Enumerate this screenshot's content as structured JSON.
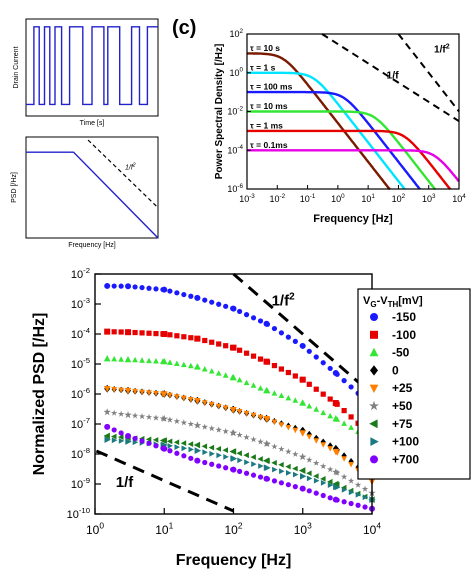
{
  "chart_data": [
    {
      "id": "telegraph",
      "type": "line",
      "title": "",
      "xlabel": "Time [s]",
      "ylabel": "Drain Current",
      "x": [
        0.0,
        0.06,
        0.06,
        0.1,
        0.1,
        0.14,
        0.14,
        0.18,
        0.18,
        0.22,
        0.22,
        0.27,
        0.27,
        0.33,
        0.33,
        0.43,
        0.43,
        0.5,
        0.5,
        0.59,
        0.59,
        0.62,
        0.62,
        0.71,
        0.71,
        0.8,
        0.8,
        0.86,
        0.86,
        0.92,
        0.92,
        1.0
      ],
      "values": [
        0,
        0,
        1,
        1,
        0,
        0,
        1,
        1,
        0,
        0,
        1,
        1,
        0,
        0,
        1,
        1,
        0,
        0,
        1,
        1,
        0,
        0,
        1,
        1,
        0,
        0,
        1,
        1,
        0,
        0,
        1,
        1
      ],
      "xlim": [
        0,
        1
      ],
      "ylim": [
        -0.15,
        1.1
      ]
    },
    {
      "id": "lorentzian-sketch",
      "type": "line",
      "title": "",
      "xlabel": "Frequency [Hz]",
      "ylabel": "PSD [/Hz]",
      "annotations": [
        {
          "label": "1/f",
          "exponent": "2"
        }
      ],
      "xlim": [
        0,
        1
      ],
      "ylim": [
        0,
        1
      ]
    },
    {
      "id": "c",
      "panel_label": "(c)",
      "type": "line",
      "title": "",
      "xlabel": "Frequency [Hz]",
      "ylabel": "Power Spectral Density [/Hz]",
      "x_scale": "log",
      "y_scale": "log",
      "xlim": [
        0.001,
        10000
      ],
      "ylim": [
        1e-06,
        100
      ],
      "x_ticks": [
        {
          "base": "10",
          "exp": "-3"
        },
        {
          "base": "10",
          "exp": "-2"
        },
        {
          "base": "10",
          "exp": "-1"
        },
        {
          "base": "10",
          "exp": "0"
        },
        {
          "base": "10",
          "exp": "1"
        },
        {
          "base": "10",
          "exp": "2"
        },
        {
          "base": "10",
          "exp": "3"
        },
        {
          "base": "10",
          "exp": "4"
        }
      ],
      "y_ticks": [
        {
          "base": "10",
          "exp": "-6"
        },
        {
          "base": "10",
          "exp": "-4"
        },
        {
          "base": "10",
          "exp": "-2"
        },
        {
          "base": "10",
          "exp": "0"
        },
        {
          "base": "10",
          "exp": "2"
        }
      ],
      "series": [
        {
          "name": "τ = 10 s",
          "tau": 10,
          "plateau": 10,
          "color": "#7a1a00"
        },
        {
          "name": "τ = 1 s",
          "tau": 1,
          "plateau": 1,
          "color": "#00e5ff"
        },
        {
          "name": "τ = 100 ms",
          "tau": 0.1,
          "plateau": 0.1,
          "color": "#1a1aff"
        },
        {
          "name": "τ = 10 ms",
          "tau": 0.01,
          "plateau": 0.01,
          "color": "#33e633"
        },
        {
          "name": "τ = 1 ms",
          "tau": 0.001,
          "plateau": 0.001,
          "color": "#e60000"
        },
        {
          "name": "τ = 0.1ms",
          "tau": 0.0001,
          "plateau": 0.0001,
          "color": "#e600e6"
        }
      ],
      "guides": [
        {
          "label": "1/f",
          "exponent": "",
          "slope": -1
        },
        {
          "label": "1/f",
          "exponent": "2",
          "slope": -2
        }
      ]
    },
    {
      "id": "d",
      "type": "scatter",
      "title": "",
      "xlabel": "Frequency [Hz]",
      "ylabel": "Normalized PSD [/Hz]",
      "x_scale": "log",
      "y_scale": "log",
      "xlim": [
        1,
        10000
      ],
      "ylim": [
        1e-10,
        0.01
      ],
      "x_ticks": [
        {
          "base": "10",
          "exp": "0"
        },
        {
          "base": "10",
          "exp": "1"
        },
        {
          "base": "10",
          "exp": "2"
        },
        {
          "base": "10",
          "exp": "3"
        },
        {
          "base": "10",
          "exp": "4"
        }
      ],
      "y_ticks": [
        {
          "base": "10",
          "exp": "-10"
        },
        {
          "base": "10",
          "exp": "-9"
        },
        {
          "base": "10",
          "exp": "-8"
        },
        {
          "base": "10",
          "exp": "-7"
        },
        {
          "base": "10",
          "exp": "-6"
        },
        {
          "base": "10",
          "exp": "-5"
        },
        {
          "base": "10",
          "exp": "-4"
        },
        {
          "base": "10",
          "exp": "-3"
        },
        {
          "base": "10",
          "exp": "-2"
        }
      ],
      "legend": {
        "title_main": "V",
        "title_sub1": "G",
        "title_mid": "-V",
        "title_sub2": "TH",
        "title_unit": "[mV]",
        "placement": "right"
      },
      "guides": [
        {
          "label": "1/f",
          "exponent": "2",
          "slope": -2
        },
        {
          "label": "1/f",
          "exponent": "",
          "slope": -1
        }
      ],
      "series": [
        {
          "name": "-150",
          "marker": "circle",
          "color": "#1a1aff",
          "x": [
            1.5,
            3,
            10,
            30,
            100,
            300,
            1000,
            3000,
            10000
          ],
          "values": [
            0.004,
            0.0039,
            0.003,
            0.0016,
            0.0007,
            0.00022,
            4e-05,
            5e-06,
            4e-07
          ]
        },
        {
          "name": "-100",
          "marker": "square",
          "color": "#e60000",
          "x": [
            1.5,
            3,
            10,
            30,
            100,
            300,
            1000,
            3000,
            10000
          ],
          "values": [
            0.00012,
            0.000115,
            0.0001,
            7e-05,
            3.5e-05,
            1.2e-05,
            3e-06,
            5e-07,
            4e-08
          ]
        },
        {
          "name": "-50",
          "marker": "triangle-up",
          "color": "#33e633",
          "x": [
            1.5,
            3,
            10,
            30,
            100,
            300,
            1000,
            3000,
            10000
          ],
          "values": [
            1.5e-05,
            1.4e-05,
            1.2e-05,
            8e-06,
            3.5e-06,
            1.3e-06,
            5e-07,
            1.5e-07,
            3e-08
          ]
        },
        {
          "name": "0",
          "marker": "diamond",
          "color": "#000000",
          "x": [
            1.5,
            3,
            10,
            30,
            100,
            300,
            1000,
            3000,
            10000
          ],
          "values": [
            1.5e-06,
            1.3e-06,
            1e-06,
            6e-07,
            3e-07,
            1.5e-07,
            6e-08,
            1.5e-08,
            1.5e-09
          ]
        },
        {
          "name": "+25",
          "marker": "triangle-down",
          "color": "#ff8000",
          "x": [
            1.5,
            3,
            10,
            30,
            100,
            300,
            1000,
            3000,
            10000
          ],
          "values": [
            1.5e-06,
            1.3e-06,
            1e-06,
            6e-07,
            3e-07,
            1.5e-07,
            5e-08,
            1.2e-08,
            1.2e-09
          ]
        },
        {
          "name": "+50",
          "marker": "star",
          "color": "#808080",
          "x": [
            1.5,
            3,
            10,
            30,
            100,
            300,
            1000,
            3000,
            10000
          ],
          "values": [
            2.5e-07,
            2e-07,
            1.5e-07,
            9e-08,
            5e-08,
            2.2e-08,
            8e-09,
            2.5e-09,
            5e-10
          ]
        },
        {
          "name": "+75",
          "marker": "triangle-left",
          "color": "#1a7a1a",
          "x": [
            1.5,
            3,
            10,
            30,
            100,
            300,
            1000,
            3000,
            10000
          ],
          "values": [
            4e-08,
            3.5e-08,
            2.8e-08,
            2e-08,
            1.2e-08,
            6e-09,
            2.8e-09,
            1e-09,
            3e-10
          ]
        },
        {
          "name": "+100",
          "marker": "triangle-right",
          "color": "#1a7a80",
          "x": [
            1.5,
            3,
            10,
            30,
            100,
            300,
            1000,
            3000,
            10000
          ],
          "values": [
            3e-08,
            2.6e-08,
            2e-08,
            1.3e-08,
            7e-09,
            3.5e-09,
            1.8e-09,
            8e-10,
            3e-10
          ]
        },
        {
          "name": "+700",
          "marker": "circle",
          "color": "#8000ff",
          "x": [
            1.5,
            3,
            10,
            30,
            100,
            300,
            1000,
            3000,
            10000
          ],
          "values": [
            8e-08,
            4e-08,
            1.5e-08,
            6e-09,
            3e-09,
            1.5e-09,
            7e-10,
            3e-10,
            1.5e-10
          ]
        }
      ]
    }
  ]
}
